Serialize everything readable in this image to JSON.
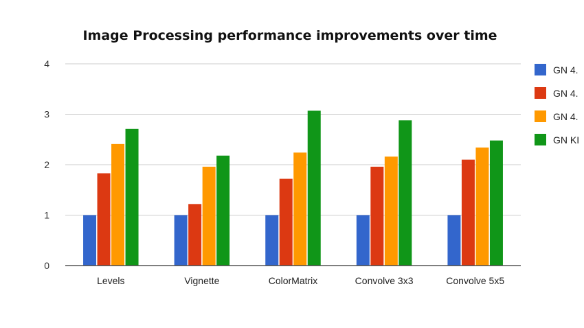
{
  "chart_data": {
    "type": "bar",
    "title": "Image Processing performance improvements over time",
    "xlabel": "",
    "ylabel": "",
    "categories": [
      "Levels",
      "Vignette",
      "ColorMatrix",
      "Convolve 3x3",
      "Convolve 5x5"
    ],
    "ylim": [
      0,
      4
    ],
    "yticks": [
      "0",
      "1",
      "2",
      "3",
      "4"
    ],
    "grid": true,
    "legend_position": "right",
    "series": [
      {
        "name": "GN 4.",
        "color": "#3366cc",
        "values": [
          1.0,
          1.0,
          1.0,
          1.0,
          1.0
        ]
      },
      {
        "name": "GN 4.",
        "color": "#dc3912",
        "values": [
          1.83,
          1.22,
          1.72,
          1.96,
          2.1
        ]
      },
      {
        "name": "GN 4.",
        "color": "#ff9900",
        "values": [
          2.41,
          1.96,
          2.24,
          2.16,
          2.34
        ]
      },
      {
        "name": "GN KI",
        "color": "#109618",
        "values": [
          2.71,
          2.18,
          3.07,
          2.88,
          2.48
        ]
      }
    ]
  }
}
